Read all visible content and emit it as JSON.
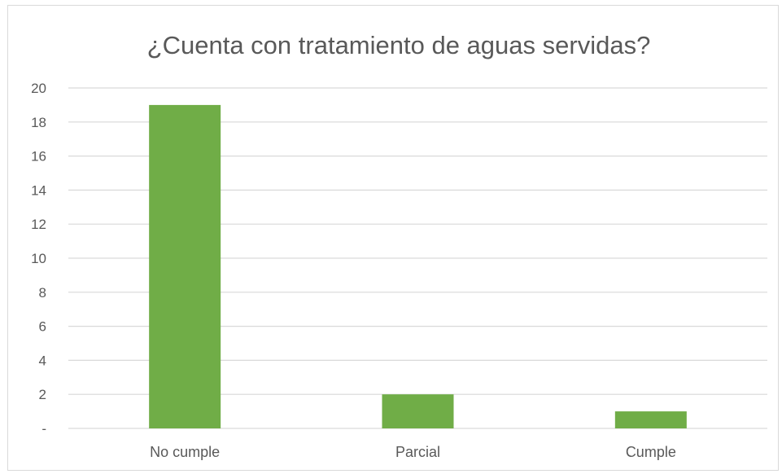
{
  "chart_data": {
    "type": "bar",
    "title": "¿Cuenta con tratamiento de aguas servidas?",
    "categories": [
      "No cumple",
      "Parcial",
      "Cumple"
    ],
    "values": [
      19,
      2,
      1
    ],
    "ylim": [
      0,
      20
    ],
    "yticks": [
      0,
      2,
      4,
      6,
      8,
      10,
      12,
      14,
      16,
      18,
      20
    ],
    "ytick_labels": [
      "-",
      "2",
      "4",
      "6",
      "8",
      "10",
      "12",
      "14",
      "16",
      "18",
      "20"
    ],
    "grid": true,
    "bar_color": "#70ad47",
    "legend": "none"
  }
}
